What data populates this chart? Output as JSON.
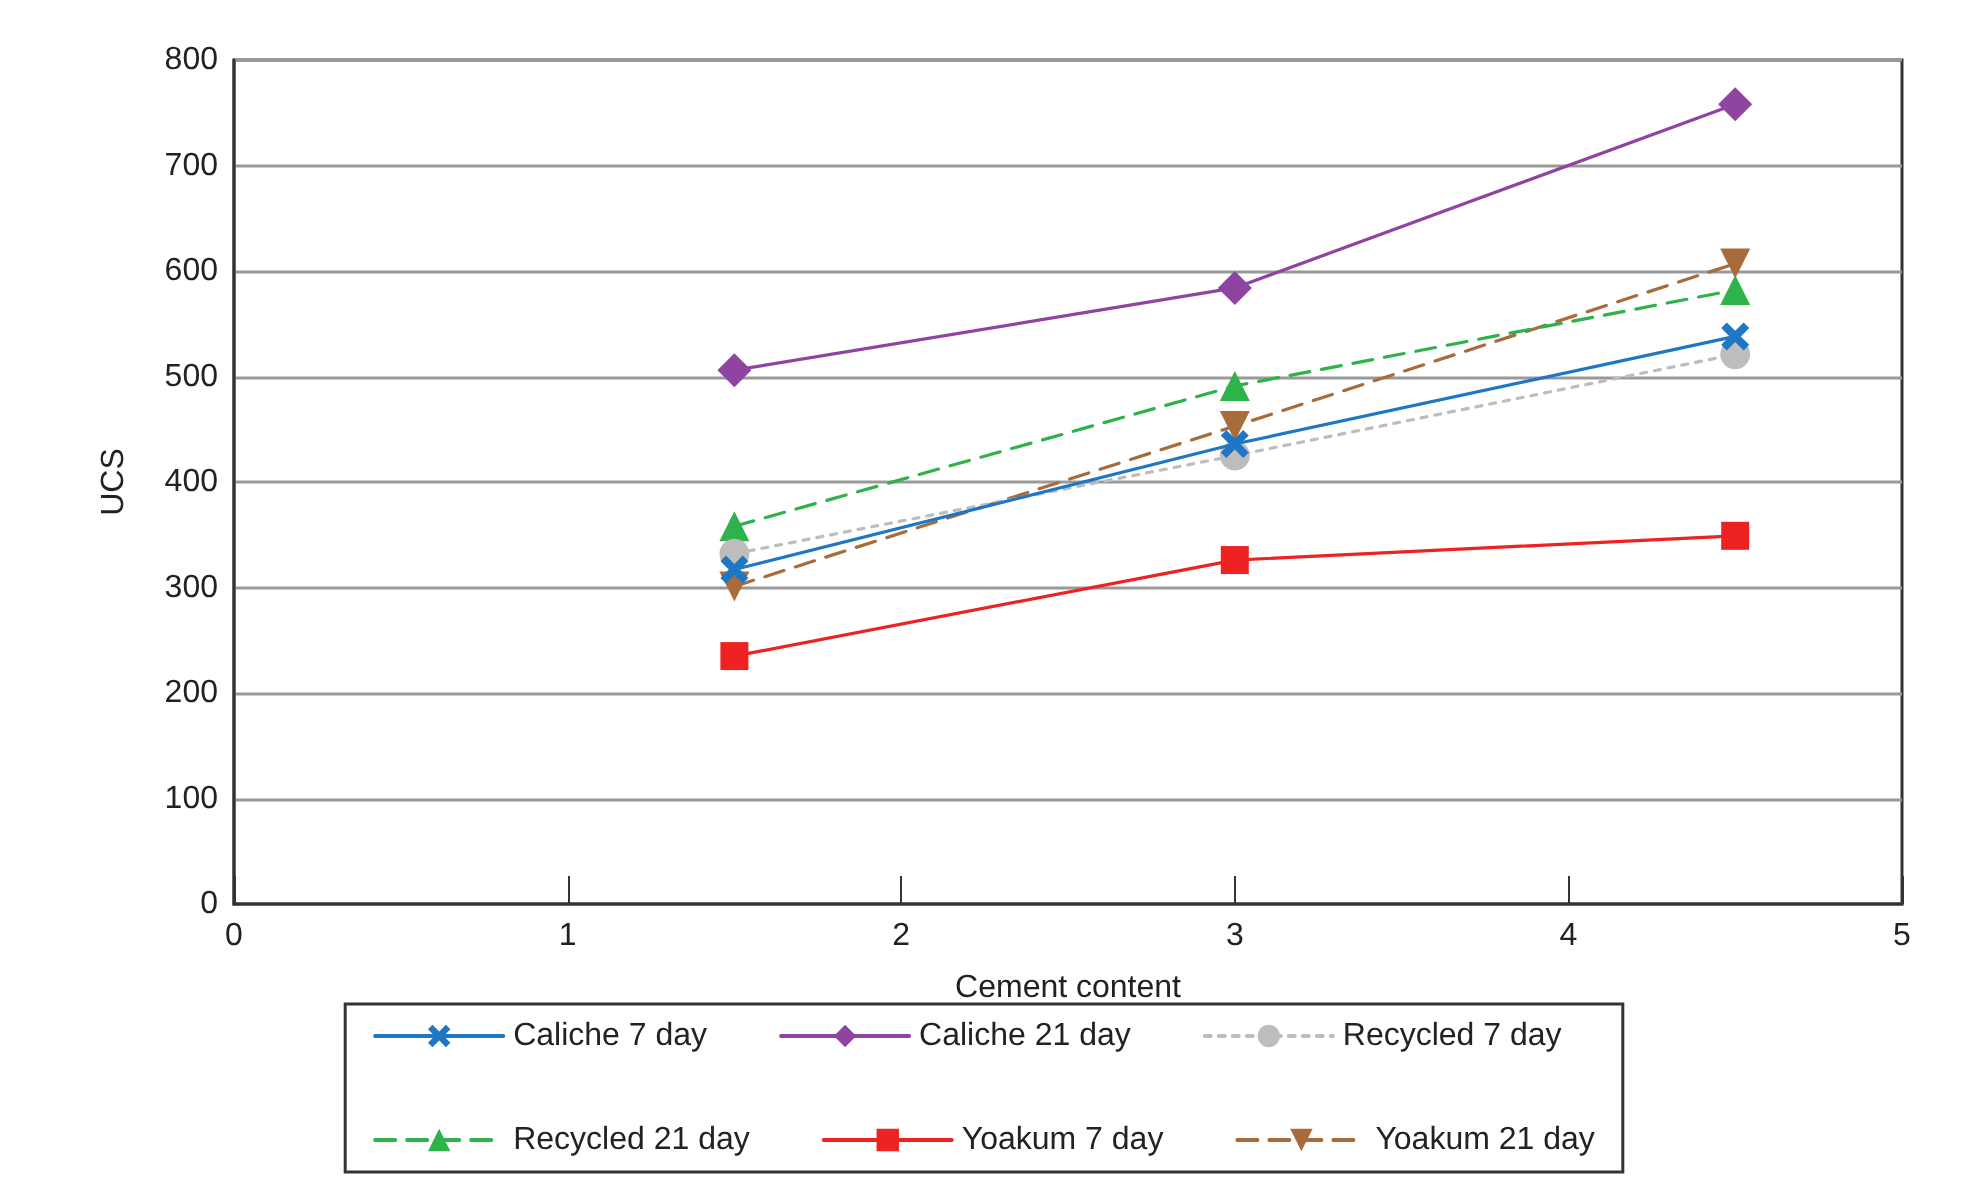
{
  "chart_data": {
    "type": "line",
    "xlabel": "Cement content",
    "ylabel": "UCS",
    "x": [
      1.5,
      3,
      4.5
    ],
    "series": [
      {
        "name": "Caliche 7 day",
        "color": "#1f77c4",
        "marker": "cross",
        "line_style": "solid",
        "values": [
          317,
          436,
          538
        ]
      },
      {
        "name": "Caliche 21 day",
        "color": "#8e44a0",
        "marker": "diamond",
        "line_style": "solid",
        "values": [
          506,
          584,
          758
        ]
      },
      {
        "name": "Recycled 7 day",
        "color": "#bdbdbd",
        "marker": "circle",
        "line_style": "dotted",
        "values": [
          332,
          425,
          521
        ]
      },
      {
        "name": "Recycled 21 day",
        "color": "#2db34a",
        "marker": "triangle",
        "line_style": "dashed",
        "values": [
          358,
          491,
          582
        ]
      },
      {
        "name": "Yoakum 7 day",
        "color": "#ee2222",
        "marker": "square",
        "line_style": "solid",
        "values": [
          235,
          326,
          349
        ]
      },
      {
        "name": "Yoakum 21 day",
        "color": "#a86b3a",
        "marker": "triangle-down",
        "line_style": "dashed",
        "values": [
          301,
          453,
          607
        ]
      }
    ],
    "xlim": [
      0,
      5
    ],
    "xticks": [
      0,
      1,
      2,
      3,
      4,
      5
    ],
    "ylim": [
      0,
      800
    ],
    "yticks": [
      0,
      100,
      200,
      300,
      400,
      500,
      600,
      700,
      800
    ],
    "grid": "y",
    "legend": "bottom"
  }
}
